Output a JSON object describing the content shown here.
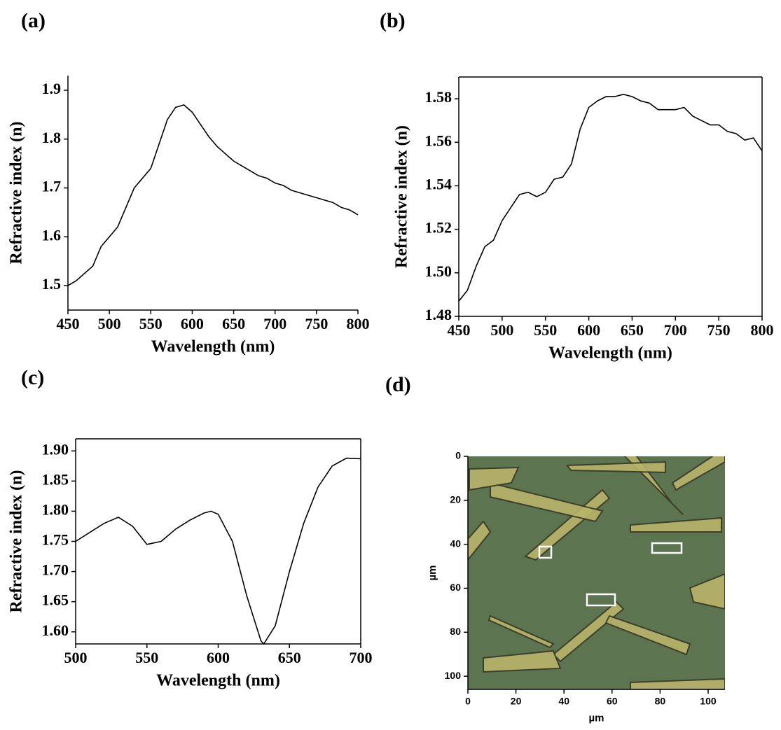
{
  "chart_data": [
    {
      "type": "line",
      "panel_label": "(a)",
      "x_label": "Wavelength (nm)",
      "y_label": "Refractive index (n)",
      "box": false,
      "color": "#000000",
      "xlim": [
        450,
        800
      ],
      "xticks": [
        450,
        500,
        550,
        600,
        650,
        700,
        750,
        800
      ],
      "ylim": [
        1.45,
        1.93
      ],
      "yticks": [
        1.5,
        1.6,
        1.7,
        1.8,
        1.9
      ],
      "x": [
        450,
        460,
        470,
        480,
        490,
        500,
        510,
        520,
        530,
        540,
        550,
        560,
        570,
        580,
        590,
        600,
        610,
        620,
        630,
        640,
        650,
        660,
        670,
        680,
        690,
        700,
        710,
        720,
        730,
        740,
        750,
        760,
        770,
        780,
        790,
        800
      ],
      "values": [
        1.5,
        1.51,
        1.525,
        1.54,
        1.58,
        1.6,
        1.62,
        1.66,
        1.7,
        1.72,
        1.74,
        1.79,
        1.84,
        1.865,
        1.87,
        1.855,
        1.83,
        1.805,
        1.785,
        1.77,
        1.755,
        1.745,
        1.735,
        1.725,
        1.72,
        1.71,
        1.705,
        1.695,
        1.69,
        1.685,
        1.68,
        1.675,
        1.67,
        1.66,
        1.655,
        1.645
      ]
    },
    {
      "type": "line",
      "panel_label": "(b)",
      "x_label": "Wavelength (nm)",
      "y_label": "Refractive index (n)",
      "box": true,
      "color": "#000000",
      "xlim": [
        450,
        800
      ],
      "xticks": [
        450,
        500,
        550,
        600,
        650,
        700,
        750,
        800
      ],
      "ylim": [
        1.48,
        1.59
      ],
      "yticks": [
        1.48,
        {
          "value": 1.5,
          "label": "1.50"
        },
        1.52,
        1.54,
        1.56,
        1.58
      ],
      "x": [
        450,
        460,
        470,
        480,
        490,
        500,
        510,
        520,
        530,
        540,
        550,
        560,
        570,
        580,
        590,
        600,
        610,
        620,
        630,
        640,
        650,
        660,
        670,
        680,
        690,
        700,
        710,
        720,
        730,
        740,
        750,
        760,
        770,
        780,
        790,
        800
      ],
      "values": [
        1.487,
        1.492,
        1.503,
        1.512,
        1.515,
        1.524,
        1.53,
        1.536,
        1.537,
        1.535,
        1.537,
        1.543,
        1.544,
        1.55,
        1.566,
        1.576,
        1.579,
        1.581,
        1.581,
        1.582,
        1.581,
        1.579,
        1.578,
        1.575,
        1.575,
        1.575,
        1.576,
        1.572,
        1.57,
        1.568,
        1.568,
        1.565,
        1.564,
        1.561,
        1.562,
        1.556
      ]
    },
    {
      "type": "line",
      "panel_label": "(c)",
      "x_label": "Wavelength (nm)",
      "y_label": "Refractive index (n)",
      "box": true,
      "color": "#000000",
      "xlim": [
        500,
        700
      ],
      "xticks": [
        500,
        550,
        600,
        650,
        700
      ],
      "ylim": [
        1.58,
        1.92
      ],
      "yticks": [
        {
          "value": 1.6,
          "label": "1.60"
        },
        1.65,
        {
          "value": 1.7,
          "label": "1.70"
        },
        1.75,
        {
          "value": 1.8,
          "label": "1.80"
        },
        1.85,
        {
          "value": 1.9,
          "label": "1.90"
        }
      ],
      "x": [
        500,
        510,
        520,
        530,
        540,
        550,
        560,
        570,
        580,
        590,
        595,
        600,
        610,
        620,
        630,
        632,
        640,
        650,
        660,
        670,
        680,
        690,
        700
      ],
      "values": [
        1.75,
        1.765,
        1.78,
        1.79,
        1.775,
        1.745,
        1.75,
        1.77,
        1.785,
        1.797,
        1.8,
        1.795,
        1.75,
        1.66,
        1.585,
        1.58,
        1.61,
        1.7,
        1.78,
        1.84,
        1.875,
        1.888,
        1.887
      ]
    },
    {
      "type": "image",
      "panel_label": "(d)",
      "x_label": "µm",
      "y_label": "µm",
      "xlim": [
        0,
        107
      ],
      "xticks": [
        0,
        20,
        40,
        60,
        80,
        100
      ],
      "ylim": [
        106,
        0
      ],
      "yticks": [
        0,
        20,
        40,
        60,
        80,
        100
      ]
    }
  ]
}
